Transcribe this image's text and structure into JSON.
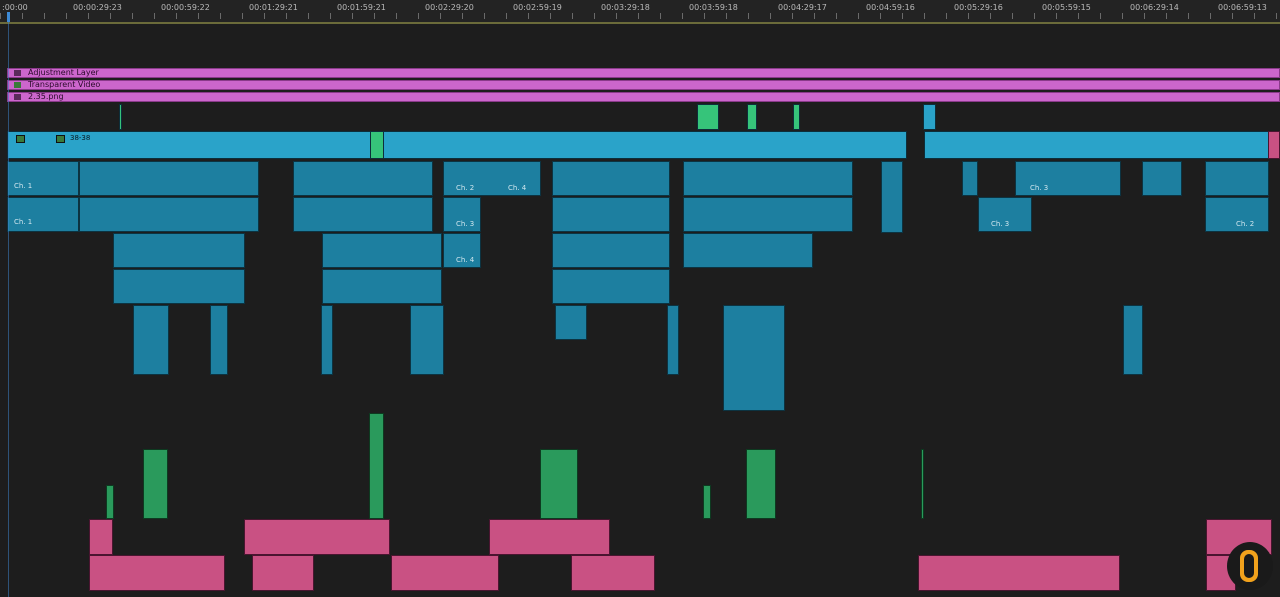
{
  "timeline": {
    "timecodes": [
      ":00:00",
      "00:00:29:23",
      "00:00:59:22",
      "00:01:29:21",
      "00:01:59:21",
      "00:02:29:20",
      "00:02:59:19",
      "00:03:29:18",
      "00:03:59:18",
      "00:04:29:17",
      "00:04:59:16",
      "00:05:29:16",
      "00:05:59:15",
      "00:06:29:14",
      "00:06:59:13"
    ],
    "graphics_tracks": [
      {
        "label": "Adjustment Layer",
        "icon": "fx-icon"
      },
      {
        "label": "Transparent Video",
        "icon": "fx-icon"
      },
      {
        "label": "2.35.png",
        "icon": "image-icon"
      }
    ],
    "clip_labels": {
      "main_clip": "38-38",
      "channel_1": "Ch. 1",
      "channel_2": "Ch. 2",
      "channel_3": "Ch. 3",
      "channel_4": "Ch. 4"
    },
    "colors": {
      "graphics": "#cc66cc",
      "video": "#2aa3c9",
      "audio_dialog": "#1d7fa0",
      "audio_sfx": "#2a9a5c",
      "audio_music": "#c95183",
      "playhead": "#3d8ad6"
    }
  },
  "watermark": {
    "icon": "o-logo-icon"
  }
}
